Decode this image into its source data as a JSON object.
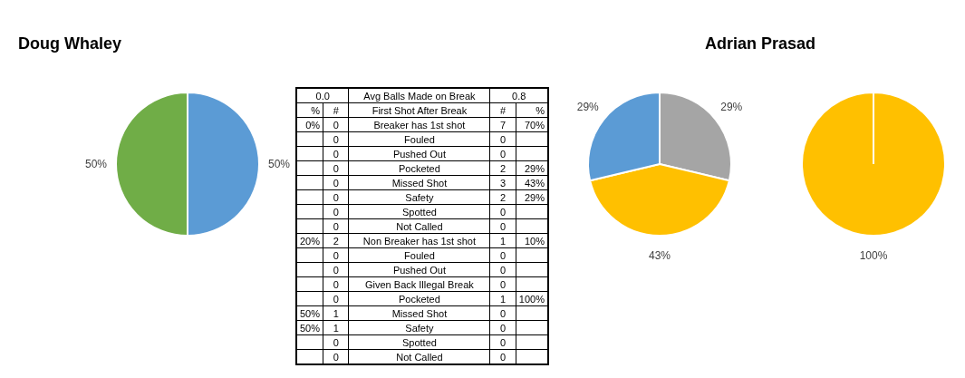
{
  "chart_data": [
    {
      "type": "pie",
      "title": "Doug Whaley",
      "categories": [
        null,
        null
      ],
      "values": [
        50,
        50
      ],
      "colors": [
        "#5b9bd5",
        "#70ad47"
      ],
      "value_labels": [
        "50%",
        "50%"
      ]
    },
    {
      "type": "other",
      "cells": [
        [
          "0.0",
          null,
          "Avg Balls Made on Break",
          "0.8",
          null
        ],
        [
          "%",
          "#",
          "First Shot After Break",
          "#",
          "%"
        ],
        [
          "0%",
          "0",
          "Breaker has 1st shot",
          "7",
          "70%"
        ],
        [
          null,
          "0",
          "Fouled",
          "0",
          null
        ],
        [
          null,
          "0",
          "Pushed Out",
          "0",
          null
        ],
        [
          null,
          "0",
          "Pocketed",
          "2",
          "29%"
        ],
        [
          null,
          "0",
          "Missed Shot",
          "3",
          "43%"
        ],
        [
          null,
          "0",
          "Safety",
          "2",
          "29%"
        ],
        [
          null,
          "0",
          "Spotted",
          "0",
          null
        ],
        [
          null,
          "0",
          "Not Called",
          "0",
          null
        ],
        [
          "20%",
          "2",
          "Non Breaker has 1st shot",
          "1",
          "10%"
        ],
        [
          null,
          "0",
          "Fouled",
          "0",
          null
        ],
        [
          null,
          "0",
          "Pushed Out",
          "0",
          null
        ],
        [
          null,
          "0",
          "Given Back Illegal Break",
          "0",
          null
        ],
        [
          null,
          "0",
          "Pocketed",
          "1",
          "100%"
        ],
        [
          "50%",
          "1",
          "Missed Shot",
          "0",
          null
        ],
        [
          "50%",
          "1",
          "Safety",
          "0",
          null
        ],
        [
          null,
          "0",
          "Spotted",
          "0",
          null
        ],
        [
          null,
          "0",
          "Not Called",
          "0",
          null
        ]
      ]
    },
    {
      "type": "pie",
      "title": "Adrian Prasad",
      "categories": [
        null,
        null,
        null
      ],
      "values": [
        29,
        43,
        29
      ],
      "colors": [
        "#a5a5a5",
        "#ffc000",
        "#5b9bd5"
      ],
      "value_labels": [
        "29%",
        "43%",
        "29%"
      ]
    },
    {
      "type": "pie",
      "categories": [
        null
      ],
      "values": [
        100
      ],
      "colors": [
        "#ffc000"
      ],
      "value_labels": [
        "100%"
      ]
    }
  ]
}
